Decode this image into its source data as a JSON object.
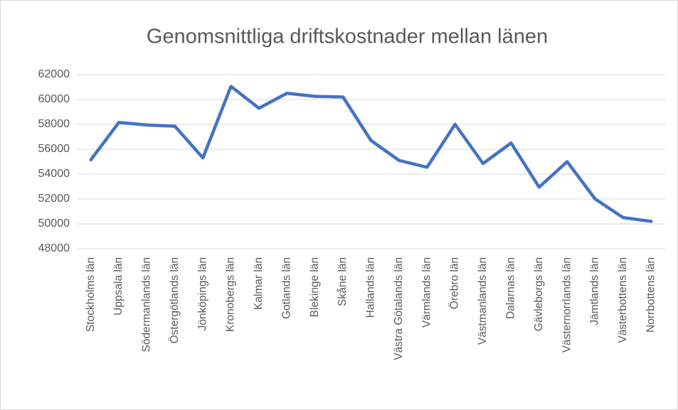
{
  "chart_data": {
    "type": "line",
    "title": "Genomsnittliga driftskostnader  mellan länen",
    "categories": [
      "Stockholms län",
      "Uppsala län",
      "Södermanlands län",
      "Östergötlands län",
      "Jönköpings län",
      "Kronobergs län",
      "Kalmar län",
      "Gotlands län",
      "Blekinge län",
      "Skåne län",
      "Hallands län",
      "Västra Götalands län",
      "Värmlands län",
      "Örebro län",
      "Västmanlands län",
      "Dalarnas län",
      "Gävleborgs län",
      "Västernorrlands län",
      "Jämtlands län",
      "Västerbottens län",
      "Norrbottens län"
    ],
    "series": [
      {
        "color": "#4472c4",
        "values": [
          55150,
          58150,
          57950,
          57850,
          55300,
          61050,
          59300,
          60500,
          60250,
          60200,
          56700,
          55100,
          54550,
          58000,
          54850,
          56500,
          52950,
          55000,
          52000,
          50500,
          50200
        ]
      }
    ],
    "ylim": [
      48000,
      62000
    ],
    "yticks": [
      48000,
      50000,
      52000,
      54000,
      56000,
      58000,
      60000,
      62000
    ],
    "grid": true
  }
}
